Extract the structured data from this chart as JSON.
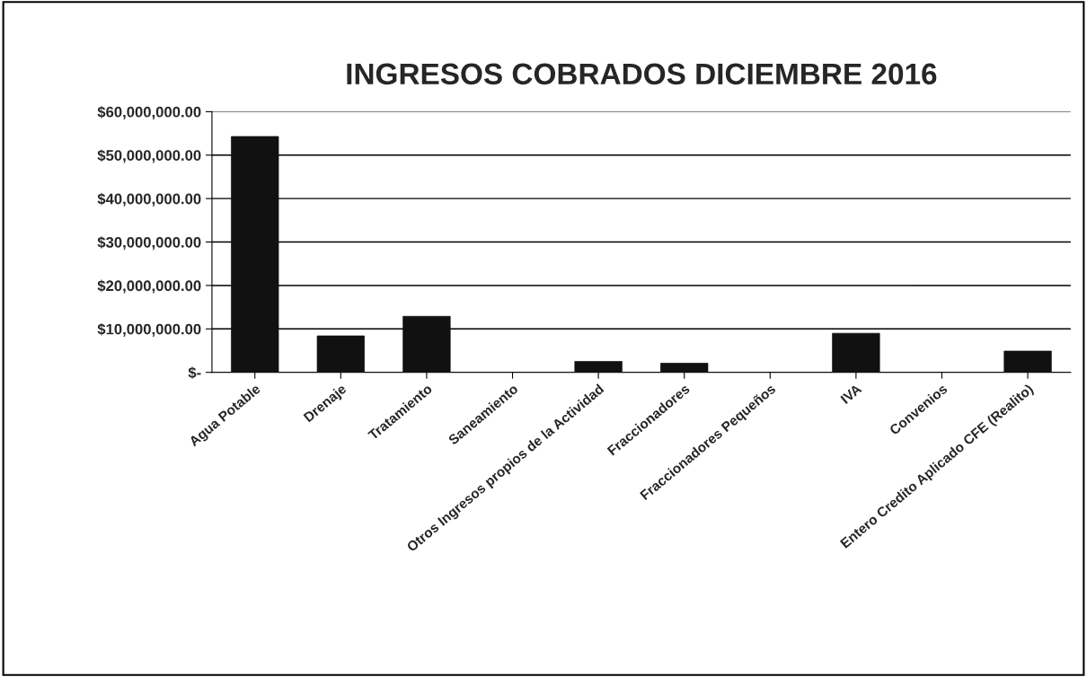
{
  "chart_data": {
    "type": "bar",
    "title": "INGRESOS COBRADOS DICIEMBRE 2016",
    "categories": [
      "Agua Potable",
      "Drenaje",
      "Tratamiento",
      "Saneamiento",
      "Otros Ingresos propios de la Actividad",
      "Fraccionadores",
      "Fraccionadores Pequeños",
      "IVA",
      "Convenios",
      "Entero Credito Aplicado CFE (Realito)"
    ],
    "values": [
      54300000,
      8400000,
      12900000,
      null,
      2500000,
      2100000,
      null,
      9000000,
      0,
      4900000
    ],
    "color": "#111111",
    "ylim": [
      0,
      60000000
    ],
    "yticks": [
      {
        "value": 0,
        "label": "$-"
      },
      {
        "value": 10000000,
        "label": "$10,000,000.00"
      },
      {
        "value": 20000000,
        "label": "$20,000,000.00"
      },
      {
        "value": 30000000,
        "label": "$30,000,000.00"
      },
      {
        "value": 40000000,
        "label": "$40,000,000.00"
      },
      {
        "value": 50000000,
        "label": "$50,000,000.00"
      },
      {
        "value": 60000000,
        "label": "$60,000,000.00"
      }
    ],
    "grid": "y"
  }
}
